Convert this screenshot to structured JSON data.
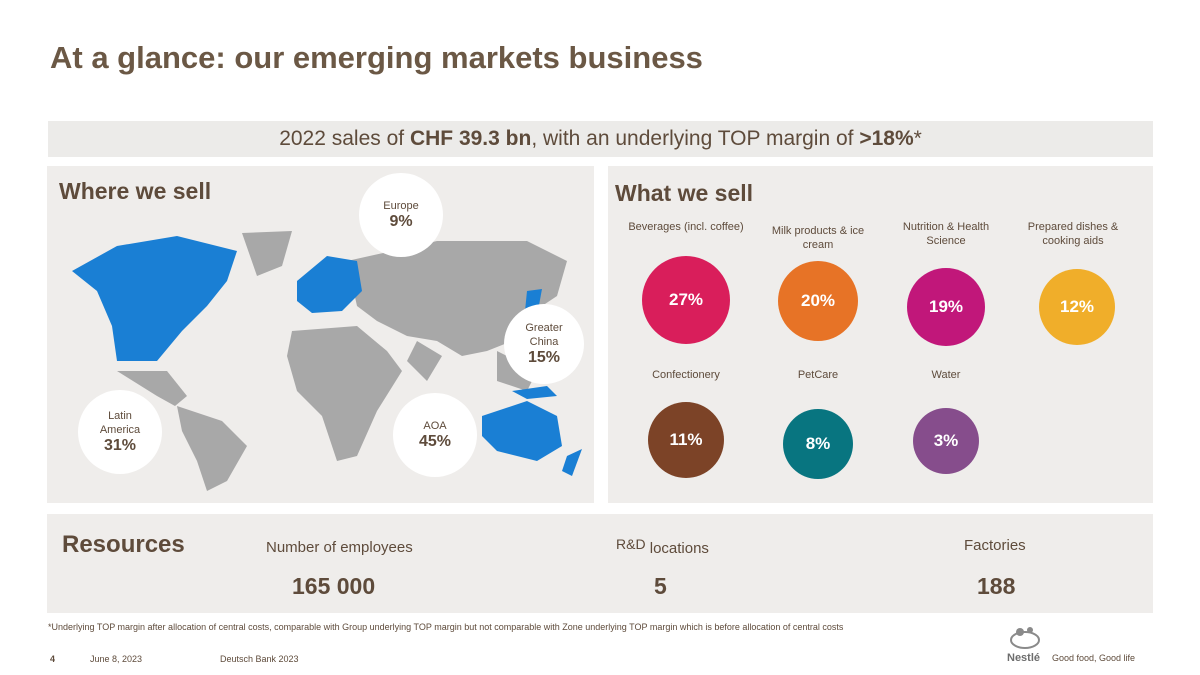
{
  "title": "At a glance: our emerging markets business",
  "banner": {
    "pre": "2022 sales of ",
    "sales": "CHF 39.3 bn",
    "mid": ", with an underlying TOP margin of ",
    "margin": ">18%",
    "star": "*"
  },
  "where": {
    "heading": "Where we sell",
    "regions": [
      {
        "label": "Europe",
        "value": "9%"
      },
      {
        "label": "Greater China",
        "value": "15%"
      },
      {
        "label": "Latin America",
        "value": "31%"
      },
      {
        "label": "AOA",
        "value": "45%"
      }
    ],
    "highlight_color": "#1a7fd4",
    "map_color": "#a8a8a8"
  },
  "what": {
    "heading": "What we sell",
    "categories": [
      {
        "label": "Beverages (incl. coffee)",
        "value": "27%",
        "color": "#d91e5b"
      },
      {
        "label": "Milk products & ice cream",
        "value": "20%",
        "color": "#e77326"
      },
      {
        "label": "Nutrition & Health Science",
        "value": "19%",
        "color": "#c1177a"
      },
      {
        "label": "Prepared dishes & cooking aids",
        "value": "12%",
        "color": "#f0ae2a"
      },
      {
        "label": "Confectionery",
        "value": "11%",
        "color": "#7c4327"
      },
      {
        "label": "PetCare",
        "value": "8%",
        "color": "#087580"
      },
      {
        "label": "Water",
        "value": "3%",
        "color": "#864d8c"
      }
    ]
  },
  "resources": {
    "heading": "Resources",
    "items": [
      {
        "label": "Number of employees",
        "value": "165 000"
      },
      {
        "label_a": "R&D",
        "label_b": "locations",
        "value": "5"
      },
      {
        "label": "Factories",
        "value": "188"
      }
    ]
  },
  "footnote": "*Underlying TOP margin after allocation of central costs, comparable with Group underlying TOP margin but not comparable with Zone underlying TOP margin which is before allocation of central costs",
  "footer": {
    "page": "4",
    "date": "June 8, 2023",
    "event": "Deutsch Bank 2023",
    "brand": "Nestlé",
    "tagline": "Good food, Good life"
  }
}
